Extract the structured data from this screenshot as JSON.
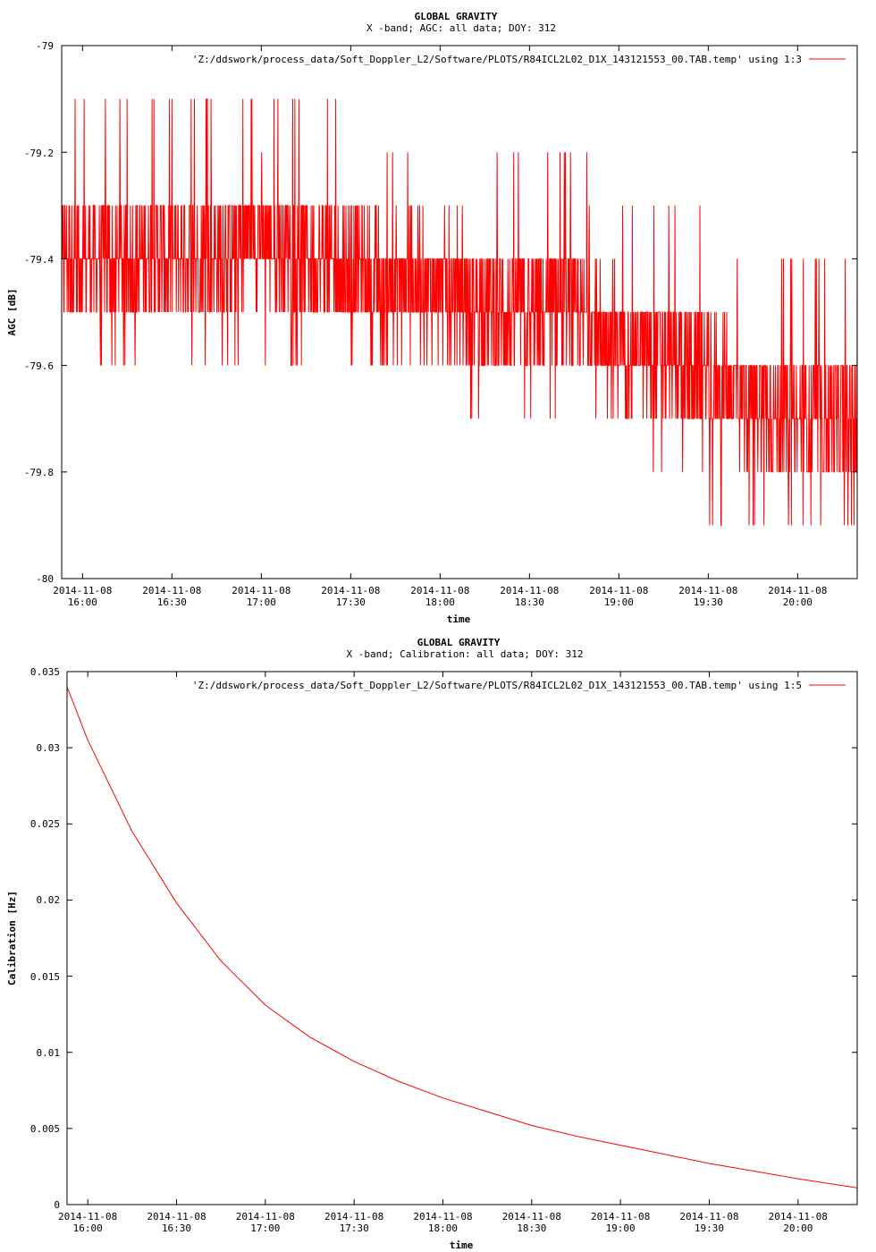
{
  "charts": [
    {
      "title": "GLOBAL GRAVITY",
      "subtitle": "X -band; AGC: all data; DOY: 312",
      "legend": "'Z:/ddswork/process_data/Soft_Doppler_L2/Software/PLOTS/R84ICL2L02_D1X_143121553_00.TAB.temp' using 1:3",
      "xlabel": "time",
      "ylabel": "AGC [dB]",
      "yticks": [
        "-79",
        "-79.2",
        "-79.4",
        "-79.6",
        "-79.8",
        "-80"
      ],
      "xtick_dates": [
        "2014-11-08",
        "2014-11-08",
        "2014-11-08",
        "2014-11-08",
        "2014-11-08",
        "2014-11-08",
        "2014-11-08",
        "2014-11-08",
        "2014-11-08"
      ],
      "xtick_times": [
        "16:00",
        "16:30",
        "17:00",
        "17:30",
        "18:00",
        "18:30",
        "19:00",
        "19:30",
        "20:00"
      ]
    },
    {
      "title": "GLOBAL GRAVITY",
      "subtitle": "X -band; Calibration: all data; DOY: 312",
      "legend": "'Z:/ddswork/process_data/Soft_Doppler_L2/Software/PLOTS/R84ICL2L02_D1X_143121553_00.TAB.temp' using 1:5",
      "xlabel": "time",
      "ylabel": "Calibration [Hz]",
      "yticks": [
        "0.035",
        "0.03",
        "0.025",
        "0.02",
        "0.015",
        "0.01",
        "0.005",
        "0"
      ],
      "xtick_dates": [
        "2014-11-08",
        "2014-11-08",
        "2014-11-08",
        "2014-11-08",
        "2014-11-08",
        "2014-11-08",
        "2014-11-08",
        "2014-11-08",
        "2014-11-08"
      ],
      "xtick_times": [
        "16:00",
        "16:30",
        "17:00",
        "17:30",
        "18:00",
        "18:30",
        "19:00",
        "19:30",
        "20:00"
      ]
    }
  ],
  "chart_data": [
    {
      "type": "line",
      "title": "GLOBAL GRAVITY",
      "subtitle": "X -band; AGC: all data; DOY: 312",
      "xlabel": "time",
      "ylabel": "AGC [dB]",
      "xlim": [
        "2014-11-08 15:53",
        "2014-11-08 20:20"
      ],
      "ylim": [
        -80,
        -79
      ],
      "color": "#ff0000",
      "grid": false,
      "legend_position": "top-right",
      "series": [
        {
          "name": "'Z:/ddswork/process_data/Soft_Doppler_L2/Software/PLOTS/R84ICL2L02_D1X_143121553_00.TAB.temp' using 1:3",
          "x": [
            "15:53",
            "16:00",
            "16:20",
            "16:40",
            "17:00",
            "17:20",
            "17:40",
            "18:00",
            "18:20",
            "18:40",
            "19:00",
            "19:20",
            "19:40",
            "20:00",
            "20:20"
          ],
          "y": [
            -79.4,
            -79.4,
            -79.4,
            -79.4,
            -79.35,
            -79.4,
            -79.45,
            -79.45,
            -79.5,
            -79.5,
            -79.55,
            -79.6,
            -79.65,
            -79.7,
            -79.7
          ],
          "y_min": [
            -79.6,
            -79.6,
            -79.6,
            -79.6,
            -79.6,
            -79.6,
            -79.6,
            -79.6,
            -79.7,
            -79.7,
            -79.7,
            -79.8,
            -79.9,
            -79.9,
            -79.9
          ],
          "y_max": [
            -79.2,
            -79.1,
            -79.1,
            -79.1,
            -79.1,
            -79.1,
            -79.2,
            -79.3,
            -79.2,
            -79.2,
            -79.3,
            -79.3,
            -79.4,
            -79.4,
            -79.4
          ]
        }
      ]
    },
    {
      "type": "line",
      "title": "GLOBAL GRAVITY",
      "subtitle": "X -band; Calibration: all data; DOY: 312",
      "xlabel": "time",
      "ylabel": "Calibration [Hz]",
      "xlim": [
        "2014-11-08 15:53",
        "2014-11-08 20:20"
      ],
      "ylim": [
        0,
        0.035
      ],
      "color": "#ff0000",
      "grid": false,
      "legend_position": "top-right",
      "series": [
        {
          "name": "'Z:/ddswork/process_data/Soft_Doppler_L2/Software/PLOTS/R84ICL2L02_D1X_143121553_00.TAB.temp' using 1:5",
          "x": [
            "15:53",
            "16:00",
            "16:15",
            "16:30",
            "16:45",
            "17:00",
            "17:15",
            "17:30",
            "17:45",
            "18:00",
            "18:15",
            "18:30",
            "18:45",
            "19:00",
            "19:15",
            "19:30",
            "19:45",
            "20:00",
            "20:20"
          ],
          "y": [
            0.034,
            0.0305,
            0.0245,
            0.0198,
            0.016,
            0.0131,
            0.011,
            0.0094,
            0.0081,
            0.007,
            0.0061,
            0.0052,
            0.0045,
            0.0039,
            0.0033,
            0.0027,
            0.0022,
            0.0017,
            0.0011
          ]
        }
      ]
    }
  ]
}
